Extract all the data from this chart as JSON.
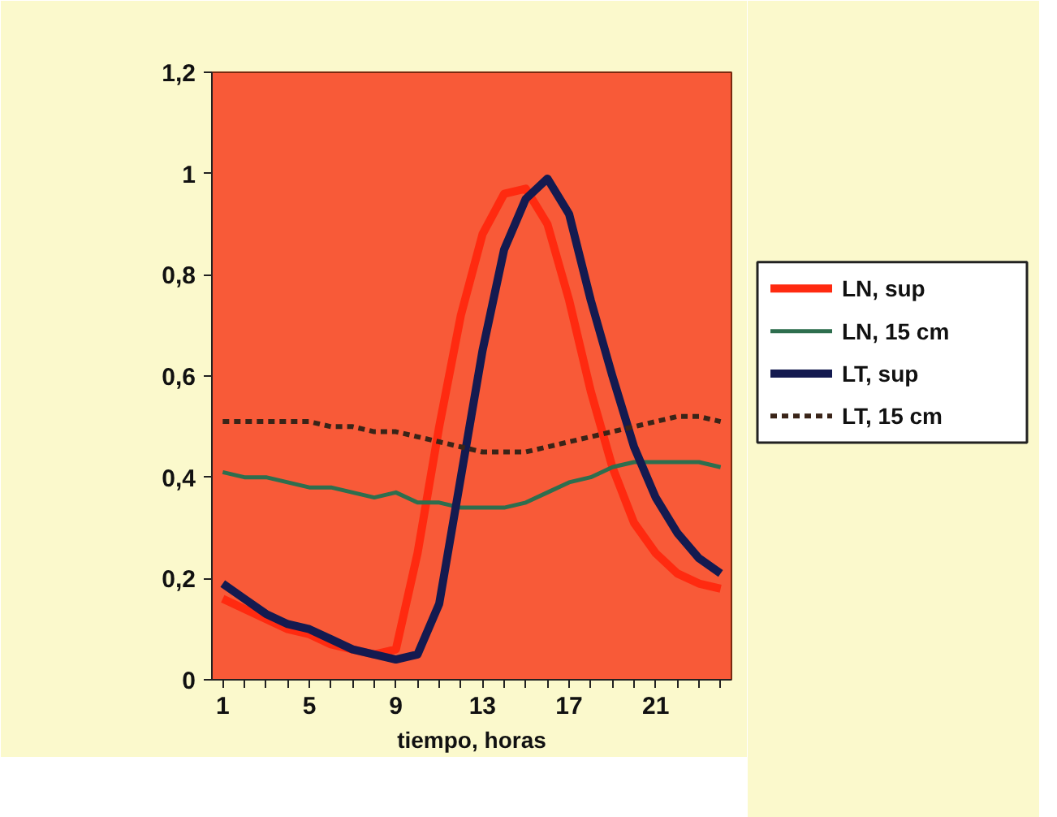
{
  "chart_data": {
    "type": "line",
    "xlabel": "tiempo, horas",
    "x": [
      1,
      2,
      3,
      4,
      5,
      6,
      7,
      8,
      9,
      10,
      11,
      12,
      13,
      14,
      15,
      16,
      17,
      18,
      19,
      20,
      21,
      22,
      23,
      24
    ],
    "xlim": [
      0.5,
      24.5
    ],
    "xticks": [
      1,
      {
        "value": 2,
        "label": null
      },
      {
        "value": 3,
        "label": null
      },
      {
        "value": 4,
        "label": null
      },
      5,
      {
        "value": 6,
        "label": null
      },
      {
        "value": 7,
        "label": null
      },
      {
        "value": 8,
        "label": null
      },
      9,
      {
        "value": 10,
        "label": null
      },
      {
        "value": 11,
        "label": null
      },
      {
        "value": 12,
        "label": null
      },
      13,
      {
        "value": 14,
        "label": null
      },
      {
        "value": 15,
        "label": null
      },
      {
        "value": 16,
        "label": null
      },
      17,
      {
        "value": 18,
        "label": null
      },
      {
        "value": 19,
        "label": null
      },
      {
        "value": 20,
        "label": null
      },
      21,
      {
        "value": 22,
        "label": null
      },
      {
        "value": 23,
        "label": null
      },
      {
        "value": 24,
        "label": null
      }
    ],
    "ylim": [
      0,
      1.2
    ],
    "yticks": [
      {
        "value": 0,
        "label": "0"
      },
      {
        "value": 0.2,
        "label": "0,2"
      },
      {
        "value": 0.4,
        "label": "0,4"
      },
      {
        "value": 0.6,
        "label": "0,6"
      },
      {
        "value": 0.8,
        "label": "0,8"
      },
      {
        "value": 1,
        "label": "1"
      },
      {
        "value": 1.2,
        "label": "1,2"
      }
    ],
    "grid": false,
    "legend": "right",
    "marker": "none",
    "series": [
      {
        "name": "LN, sup",
        "color": "#ff2a10",
        "line_style": "solid",
        "values": [
          0.16,
          0.14,
          0.12,
          0.1,
          0.09,
          0.07,
          0.06,
          0.05,
          0.06,
          0.25,
          0.5,
          0.72,
          0.88,
          0.96,
          0.97,
          0.9,
          0.75,
          0.57,
          0.42,
          0.31,
          0.25,
          0.21,
          0.19,
          0.18
        ]
      },
      {
        "name": "LN, 15 cm",
        "color": "#2e6e4e",
        "line_style": "solid",
        "values": [
          0.41,
          0.4,
          0.4,
          0.39,
          0.38,
          0.38,
          0.37,
          0.36,
          0.37,
          0.35,
          0.35,
          0.34,
          0.34,
          0.34,
          0.35,
          0.37,
          0.39,
          0.4,
          0.42,
          0.43,
          0.43,
          0.43,
          0.43,
          0.42
        ]
      },
      {
        "name": "LT, sup",
        "color": "#141a50",
        "line_style": "solid",
        "values": [
          0.19,
          0.16,
          0.13,
          0.11,
          0.1,
          0.08,
          0.06,
          0.05,
          0.04,
          0.05,
          0.15,
          0.4,
          0.65,
          0.85,
          0.95,
          0.99,
          0.92,
          0.75,
          0.6,
          0.46,
          0.36,
          0.29,
          0.24,
          0.21
        ]
      },
      {
        "name": "LT, 15 cm",
        "color": "#3a2418",
        "line_style": "dashed",
        "values": [
          0.51,
          0.51,
          0.51,
          0.51,
          0.51,
          0.5,
          0.5,
          0.49,
          0.49,
          0.48,
          0.47,
          0.46,
          0.45,
          0.45,
          0.45,
          0.46,
          0.47,
          0.48,
          0.49,
          0.5,
          0.51,
          0.52,
          0.52,
          0.51
        ]
      }
    ]
  }
}
